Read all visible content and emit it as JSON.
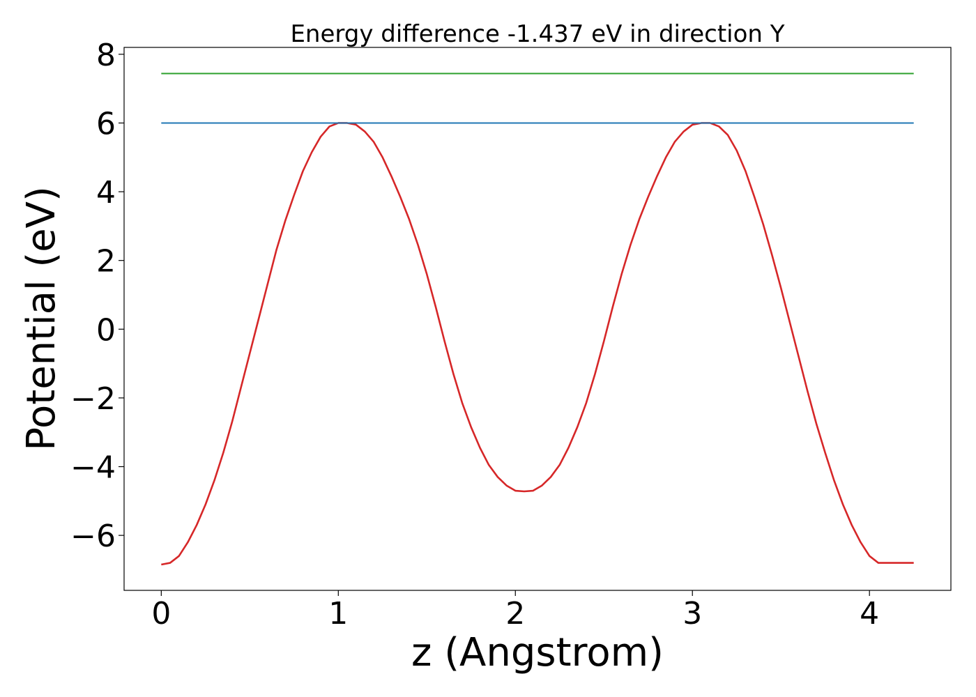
{
  "chart_data": {
    "type": "line",
    "title": "Energy difference -1.437 eV in direction Y",
    "xlabel": "z (Angstrom)",
    "ylabel": "Potential (eV)",
    "xlim": [
      -0.21,
      4.46
    ],
    "ylim": [
      -7.6,
      8.2
    ],
    "xticks": [
      0,
      1,
      2,
      3,
      4
    ],
    "yticks": [
      -6,
      -4,
      -2,
      0,
      2,
      4,
      6,
      8
    ],
    "xtick_labels": [
      "0",
      "1",
      "2",
      "3",
      "4"
    ],
    "ytick_labels": [
      "−6",
      "−4",
      "−2",
      "0",
      "2",
      "4",
      "6",
      "8"
    ],
    "grid": false,
    "legend": "none",
    "series": [
      {
        "color": "#d62728",
        "x": [
          0.0,
          0.05,
          0.1,
          0.15,
          0.2,
          0.25,
          0.3,
          0.35,
          0.4,
          0.45,
          0.5,
          0.55,
          0.6,
          0.65,
          0.7,
          0.75,
          0.8,
          0.85,
          0.9,
          0.95,
          1.0,
          1.05,
          1.1,
          1.15,
          1.2,
          1.25,
          1.3,
          1.35,
          1.4,
          1.45,
          1.5,
          1.55,
          1.6,
          1.65,
          1.7,
          1.75,
          1.8,
          1.85,
          1.9,
          1.95,
          2.0,
          2.05,
          2.1,
          2.15,
          2.2,
          2.25,
          2.3,
          2.35,
          2.4,
          2.45,
          2.5,
          2.55,
          2.6,
          2.65,
          2.7,
          2.75,
          2.8,
          2.85,
          2.9,
          2.95,
          3.0,
          3.05,
          3.1,
          3.15,
          3.2,
          3.25,
          3.3,
          3.35,
          3.4,
          3.45,
          3.5,
          3.55,
          3.6,
          3.65,
          3.7,
          3.75,
          3.8,
          3.85,
          3.9,
          3.95,
          4.0,
          4.05,
          4.1,
          4.15,
          4.2,
          4.25
        ],
        "y": [
          -6.85,
          -6.8,
          -6.6,
          -6.2,
          -5.7,
          -5.1,
          -4.4,
          -3.6,
          -2.7,
          -1.7,
          -0.7,
          0.3,
          1.3,
          2.3,
          3.15,
          3.9,
          4.6,
          5.15,
          5.6,
          5.9,
          6.0,
          6.0,
          5.95,
          5.75,
          5.45,
          5.0,
          4.45,
          3.85,
          3.2,
          2.45,
          1.6,
          0.65,
          -0.35,
          -1.3,
          -2.15,
          -2.85,
          -3.45,
          -3.95,
          -4.3,
          -4.55,
          -4.7,
          -4.72,
          -4.7,
          -4.55,
          -4.3,
          -3.95,
          -3.45,
          -2.85,
          -2.15,
          -1.3,
          -0.35,
          0.65,
          1.6,
          2.45,
          3.2,
          3.85,
          4.45,
          5.0,
          5.45,
          5.75,
          5.95,
          6.0,
          6.0,
          5.9,
          5.65,
          5.2,
          4.6,
          3.85,
          3.05,
          2.15,
          1.2,
          0.2,
          -0.8,
          -1.8,
          -2.75,
          -3.6,
          -4.4,
          -5.1,
          -5.7,
          -6.2,
          -6.6,
          -6.8,
          -6.8,
          -6.8,
          -6.8,
          -6.8
        ]
      },
      {
        "color": "#1f77b4",
        "x": [
          0.0,
          4.25
        ],
        "y": [
          6.0,
          6.0
        ]
      },
      {
        "color": "#2ca02c",
        "x": [
          0.0,
          4.25
        ],
        "y": [
          7.44,
          7.44
        ]
      }
    ]
  }
}
